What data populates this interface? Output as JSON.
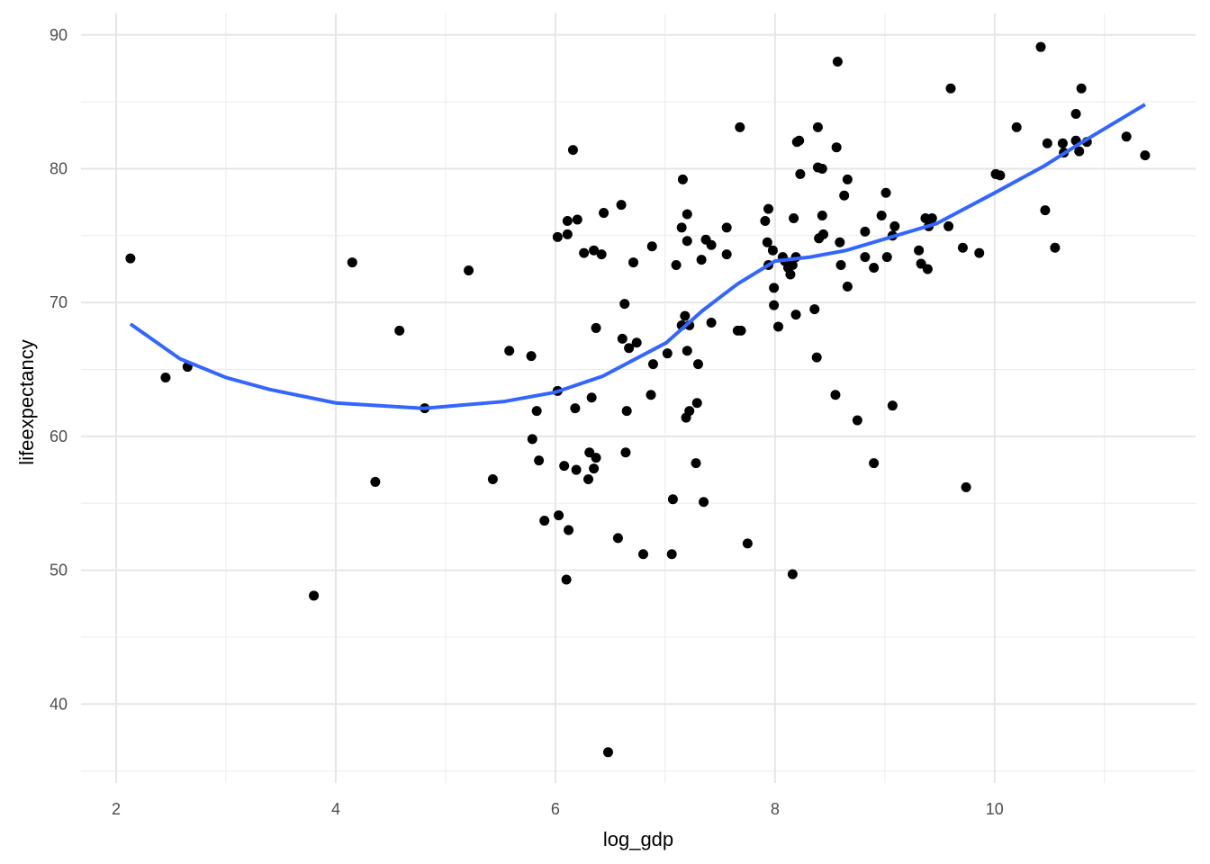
{
  "chart_data": {
    "type": "scatter",
    "title": "",
    "xlabel": "log_gdp",
    "ylabel": "lifeexpectancy",
    "xlim": [
      1.68,
      11.83
    ],
    "ylim": [
      34.1,
      91.6
    ],
    "xticks": [
      2,
      4,
      6,
      8,
      10
    ],
    "yticks": [
      40,
      50,
      60,
      70,
      80,
      90
    ],
    "xtick_labels": [
      "2",
      "4",
      "6",
      "8",
      "10"
    ],
    "ytick_labels": [
      "40",
      "50",
      "60",
      "70",
      "80",
      "90"
    ],
    "grid": true,
    "point_color": "#000000",
    "line_color": "#3366FF",
    "points": [
      [
        2.13,
        73.3
      ],
      [
        2.45,
        64.4
      ],
      [
        2.65,
        65.2
      ],
      [
        3.8,
        48.1
      ],
      [
        4.15,
        73.0
      ],
      [
        4.36,
        56.6
      ],
      [
        4.58,
        67.9
      ],
      [
        4.81,
        62.1
      ],
      [
        5.21,
        72.4
      ],
      [
        5.43,
        56.8
      ],
      [
        5.58,
        66.4
      ],
      [
        5.78,
        66.0
      ],
      [
        5.79,
        59.8
      ],
      [
        5.83,
        61.9
      ],
      [
        5.85,
        58.2
      ],
      [
        5.9,
        53.7
      ],
      [
        6.02,
        74.9
      ],
      [
        6.02,
        63.4
      ],
      [
        6.03,
        54.1
      ],
      [
        6.08,
        57.8
      ],
      [
        6.1,
        49.3
      ],
      [
        6.11,
        76.1
      ],
      [
        6.11,
        75.1
      ],
      [
        6.12,
        53.0
      ],
      [
        6.16,
        81.4
      ],
      [
        6.18,
        62.1
      ],
      [
        6.19,
        57.5
      ],
      [
        6.2,
        76.2
      ],
      [
        6.26,
        73.7
      ],
      [
        6.3,
        56.8
      ],
      [
        6.31,
        58.8
      ],
      [
        6.33,
        62.9
      ],
      [
        6.35,
        57.6
      ],
      [
        6.35,
        73.9
      ],
      [
        6.37,
        58.4
      ],
      [
        6.37,
        68.1
      ],
      [
        6.42,
        73.6
      ],
      [
        6.44,
        76.7
      ],
      [
        6.48,
        36.4
      ],
      [
        6.57,
        52.4
      ],
      [
        6.6,
        77.3
      ],
      [
        6.61,
        67.3
      ],
      [
        6.63,
        69.9
      ],
      [
        6.64,
        58.8
      ],
      [
        6.65,
        61.9
      ],
      [
        6.67,
        66.6
      ],
      [
        6.71,
        73.0
      ],
      [
        6.74,
        67.0
      ],
      [
        6.8,
        51.2
      ],
      [
        6.87,
        63.1
      ],
      [
        6.88,
        74.2
      ],
      [
        6.89,
        65.4
      ],
      [
        7.02,
        66.2
      ],
      [
        7.06,
        51.2
      ],
      [
        7.07,
        55.3
      ],
      [
        7.1,
        72.8
      ],
      [
        7.15,
        75.6
      ],
      [
        7.15,
        68.3
      ],
      [
        7.16,
        79.2
      ],
      [
        7.18,
        69.0
      ],
      [
        7.19,
        61.4
      ],
      [
        7.2,
        74.6
      ],
      [
        7.2,
        66.4
      ],
      [
        7.2,
        76.6
      ],
      [
        7.22,
        61.9
      ],
      [
        7.22,
        68.3
      ],
      [
        7.28,
        58.0
      ],
      [
        7.29,
        62.5
      ],
      [
        7.3,
        65.4
      ],
      [
        7.33,
        73.2
      ],
      [
        7.35,
        55.1
      ],
      [
        7.37,
        74.7
      ],
      [
        7.42,
        74.3
      ],
      [
        7.42,
        68.5
      ],
      [
        7.56,
        73.6
      ],
      [
        7.56,
        75.6
      ],
      [
        7.66,
        67.9
      ],
      [
        7.68,
        83.1
      ],
      [
        7.69,
        67.9
      ],
      [
        7.75,
        52.0
      ],
      [
        7.91,
        76.1
      ],
      [
        7.93,
        74.5
      ],
      [
        7.94,
        77.0
      ],
      [
        7.94,
        72.8
      ],
      [
        7.98,
        73.9
      ],
      [
        7.99,
        69.8
      ],
      [
        7.99,
        71.1
      ],
      [
        8.03,
        68.2
      ],
      [
        8.07,
        73.4
      ],
      [
        8.09,
        73.1
      ],
      [
        8.12,
        72.6
      ],
      [
        8.14,
        72.1
      ],
      [
        8.16,
        49.7
      ],
      [
        8.16,
        72.8
      ],
      [
        8.17,
        76.3
      ],
      [
        8.19,
        69.1
      ],
      [
        8.19,
        73.4
      ],
      [
        8.2,
        82.0
      ],
      [
        8.22,
        82.1
      ],
      [
        8.23,
        79.6
      ],
      [
        8.36,
        69.5
      ],
      [
        8.38,
        65.9
      ],
      [
        8.39,
        83.1
      ],
      [
        8.39,
        80.1
      ],
      [
        8.4,
        74.8
      ],
      [
        8.43,
        80.0
      ],
      [
        8.43,
        76.5
      ],
      [
        8.44,
        75.1
      ],
      [
        8.55,
        63.1
      ],
      [
        8.57,
        88.0
      ],
      [
        8.56,
        81.6
      ],
      [
        8.59,
        74.5
      ],
      [
        8.6,
        72.8
      ],
      [
        8.63,
        78.0
      ],
      [
        8.66,
        79.2
      ],
      [
        8.66,
        71.2
      ],
      [
        8.75,
        61.2
      ],
      [
        8.82,
        73.4
      ],
      [
        8.82,
        75.3
      ],
      [
        8.9,
        72.6
      ],
      [
        8.9,
        58.0
      ],
      [
        8.97,
        76.5
      ],
      [
        9.01,
        78.2
      ],
      [
        9.02,
        73.4
      ],
      [
        9.07,
        75.0
      ],
      [
        9.07,
        62.3
      ],
      [
        9.09,
        75.7
      ],
      [
        9.31,
        73.9
      ],
      [
        9.33,
        72.9
      ],
      [
        9.37,
        76.3
      ],
      [
        9.39,
        72.5
      ],
      [
        9.4,
        75.7
      ],
      [
        9.43,
        76.3
      ],
      [
        9.58,
        75.7
      ],
      [
        9.6,
        86.0
      ],
      [
        9.71,
        74.1
      ],
      [
        9.74,
        56.2
      ],
      [
        9.86,
        73.7
      ],
      [
        10.01,
        79.6
      ],
      [
        10.05,
        79.5
      ],
      [
        10.2,
        83.1
      ],
      [
        10.42,
        89.1
      ],
      [
        10.46,
        76.9
      ],
      [
        10.48,
        81.9
      ],
      [
        10.55,
        74.1
      ],
      [
        10.62,
        81.9
      ],
      [
        10.63,
        81.2
      ],
      [
        10.74,
        84.1
      ],
      [
        10.74,
        82.1
      ],
      [
        10.77,
        81.3
      ],
      [
        10.79,
        86.0
      ],
      [
        10.84,
        82.0
      ],
      [
        11.2,
        82.4
      ],
      [
        11.37,
        81.0
      ]
    ],
    "smooth_line": [
      [
        2.13,
        68.4
      ],
      [
        2.58,
        65.8
      ],
      [
        3.0,
        64.4
      ],
      [
        3.4,
        63.5
      ],
      [
        4.0,
        62.5
      ],
      [
        4.8,
        62.1
      ],
      [
        5.53,
        62.6
      ],
      [
        6.0,
        63.3
      ],
      [
        6.43,
        64.5
      ],
      [
        7.01,
        67.0
      ],
      [
        7.34,
        69.4
      ],
      [
        7.5,
        70.4
      ],
      [
        7.66,
        71.4
      ],
      [
        8.0,
        73.1
      ],
      [
        8.32,
        73.4
      ],
      [
        8.65,
        73.9
      ],
      [
        9.06,
        74.9
      ],
      [
        9.47,
        75.9
      ],
      [
        10.0,
        78.2
      ],
      [
        10.45,
        80.2
      ],
      [
        10.78,
        81.9
      ],
      [
        11.37,
        84.8
      ]
    ]
  }
}
